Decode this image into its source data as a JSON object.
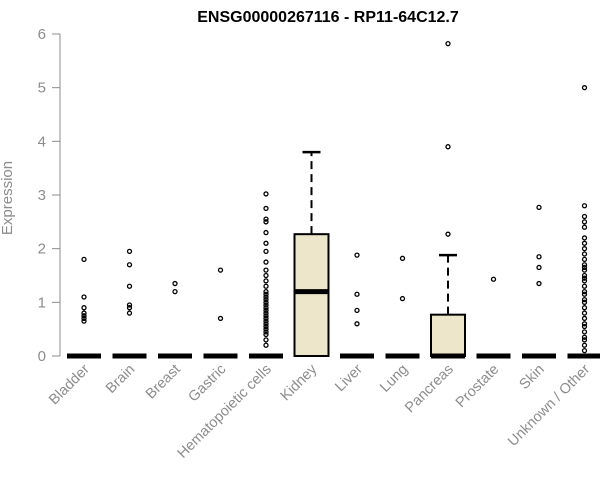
{
  "chart_data": {
    "type": "box",
    "title": "ENSG00000267116 - RP11-64C12.7",
    "xlabel": "",
    "ylabel": "Expression",
    "ylim": [
      0,
      6
    ],
    "yticks": [
      0,
      1,
      2,
      3,
      4,
      5,
      6
    ],
    "box_fill": "#ede6cb",
    "categories": [
      "Bladder",
      "Brain",
      "Breast",
      "Gastric",
      "Hematopoietic cells",
      "Kidney",
      "Liver",
      "Lung",
      "Pancreas",
      "Prostate",
      "Skin",
      "Unknown / Other"
    ],
    "boxes": [
      {
        "q1": 0,
        "median": 0,
        "q3": 0,
        "whisker_low": 0,
        "whisker_high": 0,
        "outliers": [
          0.65,
          0.7,
          0.75,
          0.8,
          0.9,
          1.1,
          1.8
        ]
      },
      {
        "q1": 0,
        "median": 0,
        "q3": 0,
        "whisker_low": 0,
        "whisker_high": 0,
        "outliers": [
          0.8,
          0.9,
          0.95,
          1.3,
          1.7,
          1.95
        ]
      },
      {
        "q1": 0,
        "median": 0,
        "q3": 0,
        "whisker_low": 0,
        "whisker_high": 0,
        "outliers": [
          1.2,
          1.35
        ]
      },
      {
        "q1": 0,
        "median": 0,
        "q3": 0,
        "whisker_low": 0,
        "whisker_high": 0,
        "outliers": [
          0.7,
          1.6
        ]
      },
      {
        "q1": 0,
        "median": 0,
        "q3": 0,
        "whisker_low": 0,
        "whisker_high": 0,
        "outliers": [
          0.2,
          0.3,
          0.4,
          0.45,
          0.5,
          0.55,
          0.6,
          0.65,
          0.7,
          0.75,
          0.8,
          0.85,
          0.9,
          0.95,
          1.0,
          1.05,
          1.1,
          1.15,
          1.2,
          1.3,
          1.4,
          1.5,
          1.6,
          1.75,
          1.95,
          2.1,
          2.3,
          2.5,
          2.55,
          2.75,
          3.02
        ]
      },
      {
        "q1": 0,
        "median": 1.2,
        "q3": 2.27,
        "whisker_low": 0,
        "whisker_high": 3.8,
        "outliers": []
      },
      {
        "q1": 0,
        "median": 0,
        "q3": 0,
        "whisker_low": 0,
        "whisker_high": 0,
        "outliers": [
          0.6,
          0.85,
          1.15,
          1.88
        ]
      },
      {
        "q1": 0,
        "median": 0,
        "q3": 0,
        "whisker_low": 0,
        "whisker_high": 0,
        "outliers": [
          1.07,
          1.82
        ]
      },
      {
        "q1": 0,
        "median": 0,
        "q3": 0.77,
        "whisker_low": 0,
        "whisker_high": 1.88,
        "outliers": [
          2.27,
          3.9,
          5.82
        ]
      },
      {
        "q1": 0,
        "median": 0,
        "q3": 0,
        "whisker_low": 0,
        "whisker_high": 0,
        "outliers": [
          1.43
        ]
      },
      {
        "q1": 0,
        "median": 0,
        "q3": 0,
        "whisker_low": 0,
        "whisker_high": 0,
        "outliers": [
          1.35,
          1.65,
          1.85,
          2.77
        ]
      },
      {
        "q1": 0,
        "median": 0,
        "q3": 0,
        "whisker_low": 0,
        "whisker_high": 0,
        "outliers": [
          0.1,
          0.2,
          0.3,
          0.35,
          0.45,
          0.55,
          0.6,
          0.7,
          0.8,
          0.9,
          1.0,
          1.05,
          1.15,
          1.2,
          1.3,
          1.4,
          1.45,
          1.5,
          1.6,
          1.65,
          1.7,
          1.8,
          1.9,
          2.0,
          2.1,
          2.2,
          2.4,
          2.5,
          2.6,
          2.8,
          5.0
        ]
      }
    ]
  }
}
